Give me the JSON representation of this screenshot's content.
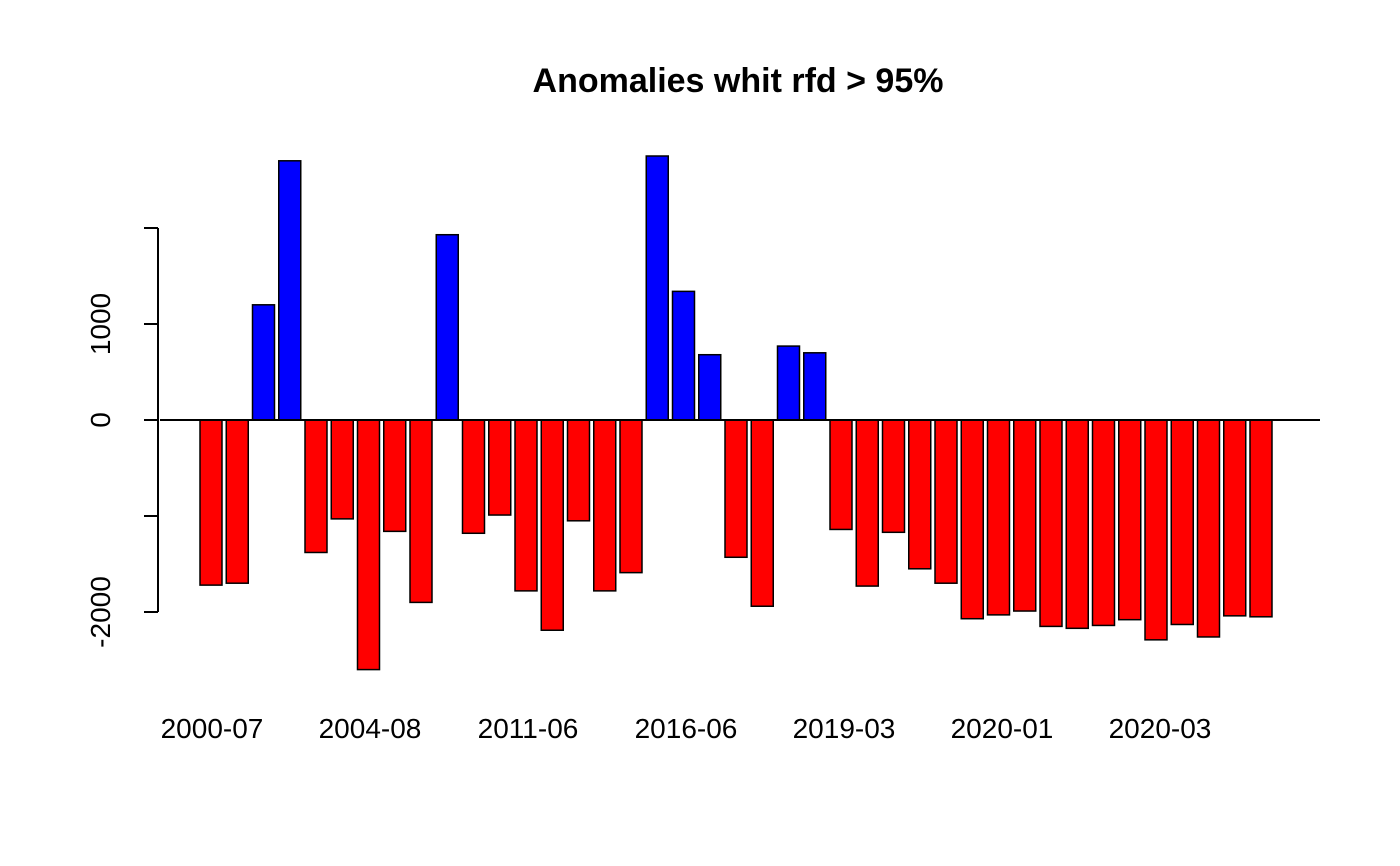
{
  "chart_data": {
    "type": "bar",
    "title": "Anomalies whit rfd > 95%",
    "xlabel": "",
    "ylabel": "",
    "ylim": [
      -2600,
      2800
    ],
    "y_ticks": [
      -2000,
      0,
      1000
    ],
    "x_tick_labels": [
      "2000-07",
      "2004-08",
      "2011-06",
      "2016-06",
      "2019-03",
      "2020-01",
      "2020-03"
    ],
    "baseline": 0,
    "positive_color": "#0000ff",
    "negative_color": "#ff0000",
    "grid": false,
    "legend": "none",
    "values": [
      -1720,
      -1700,
      1200,
      2700,
      -1380,
      -1030,
      -2600,
      -1160,
      -1900,
      1930,
      -1180,
      -990,
      -1780,
      -2190,
      -1050,
      -1780,
      -1590,
      2750,
      1340,
      680,
      -1430,
      -1940,
      770,
      700,
      -1140,
      -1730,
      -1170,
      -1550,
      -1700,
      -2070,
      -2030,
      -1990,
      -2150,
      -2170,
      -2140,
      -2080,
      -2290,
      -2130,
      -2260,
      -2040,
      -2050
    ]
  }
}
